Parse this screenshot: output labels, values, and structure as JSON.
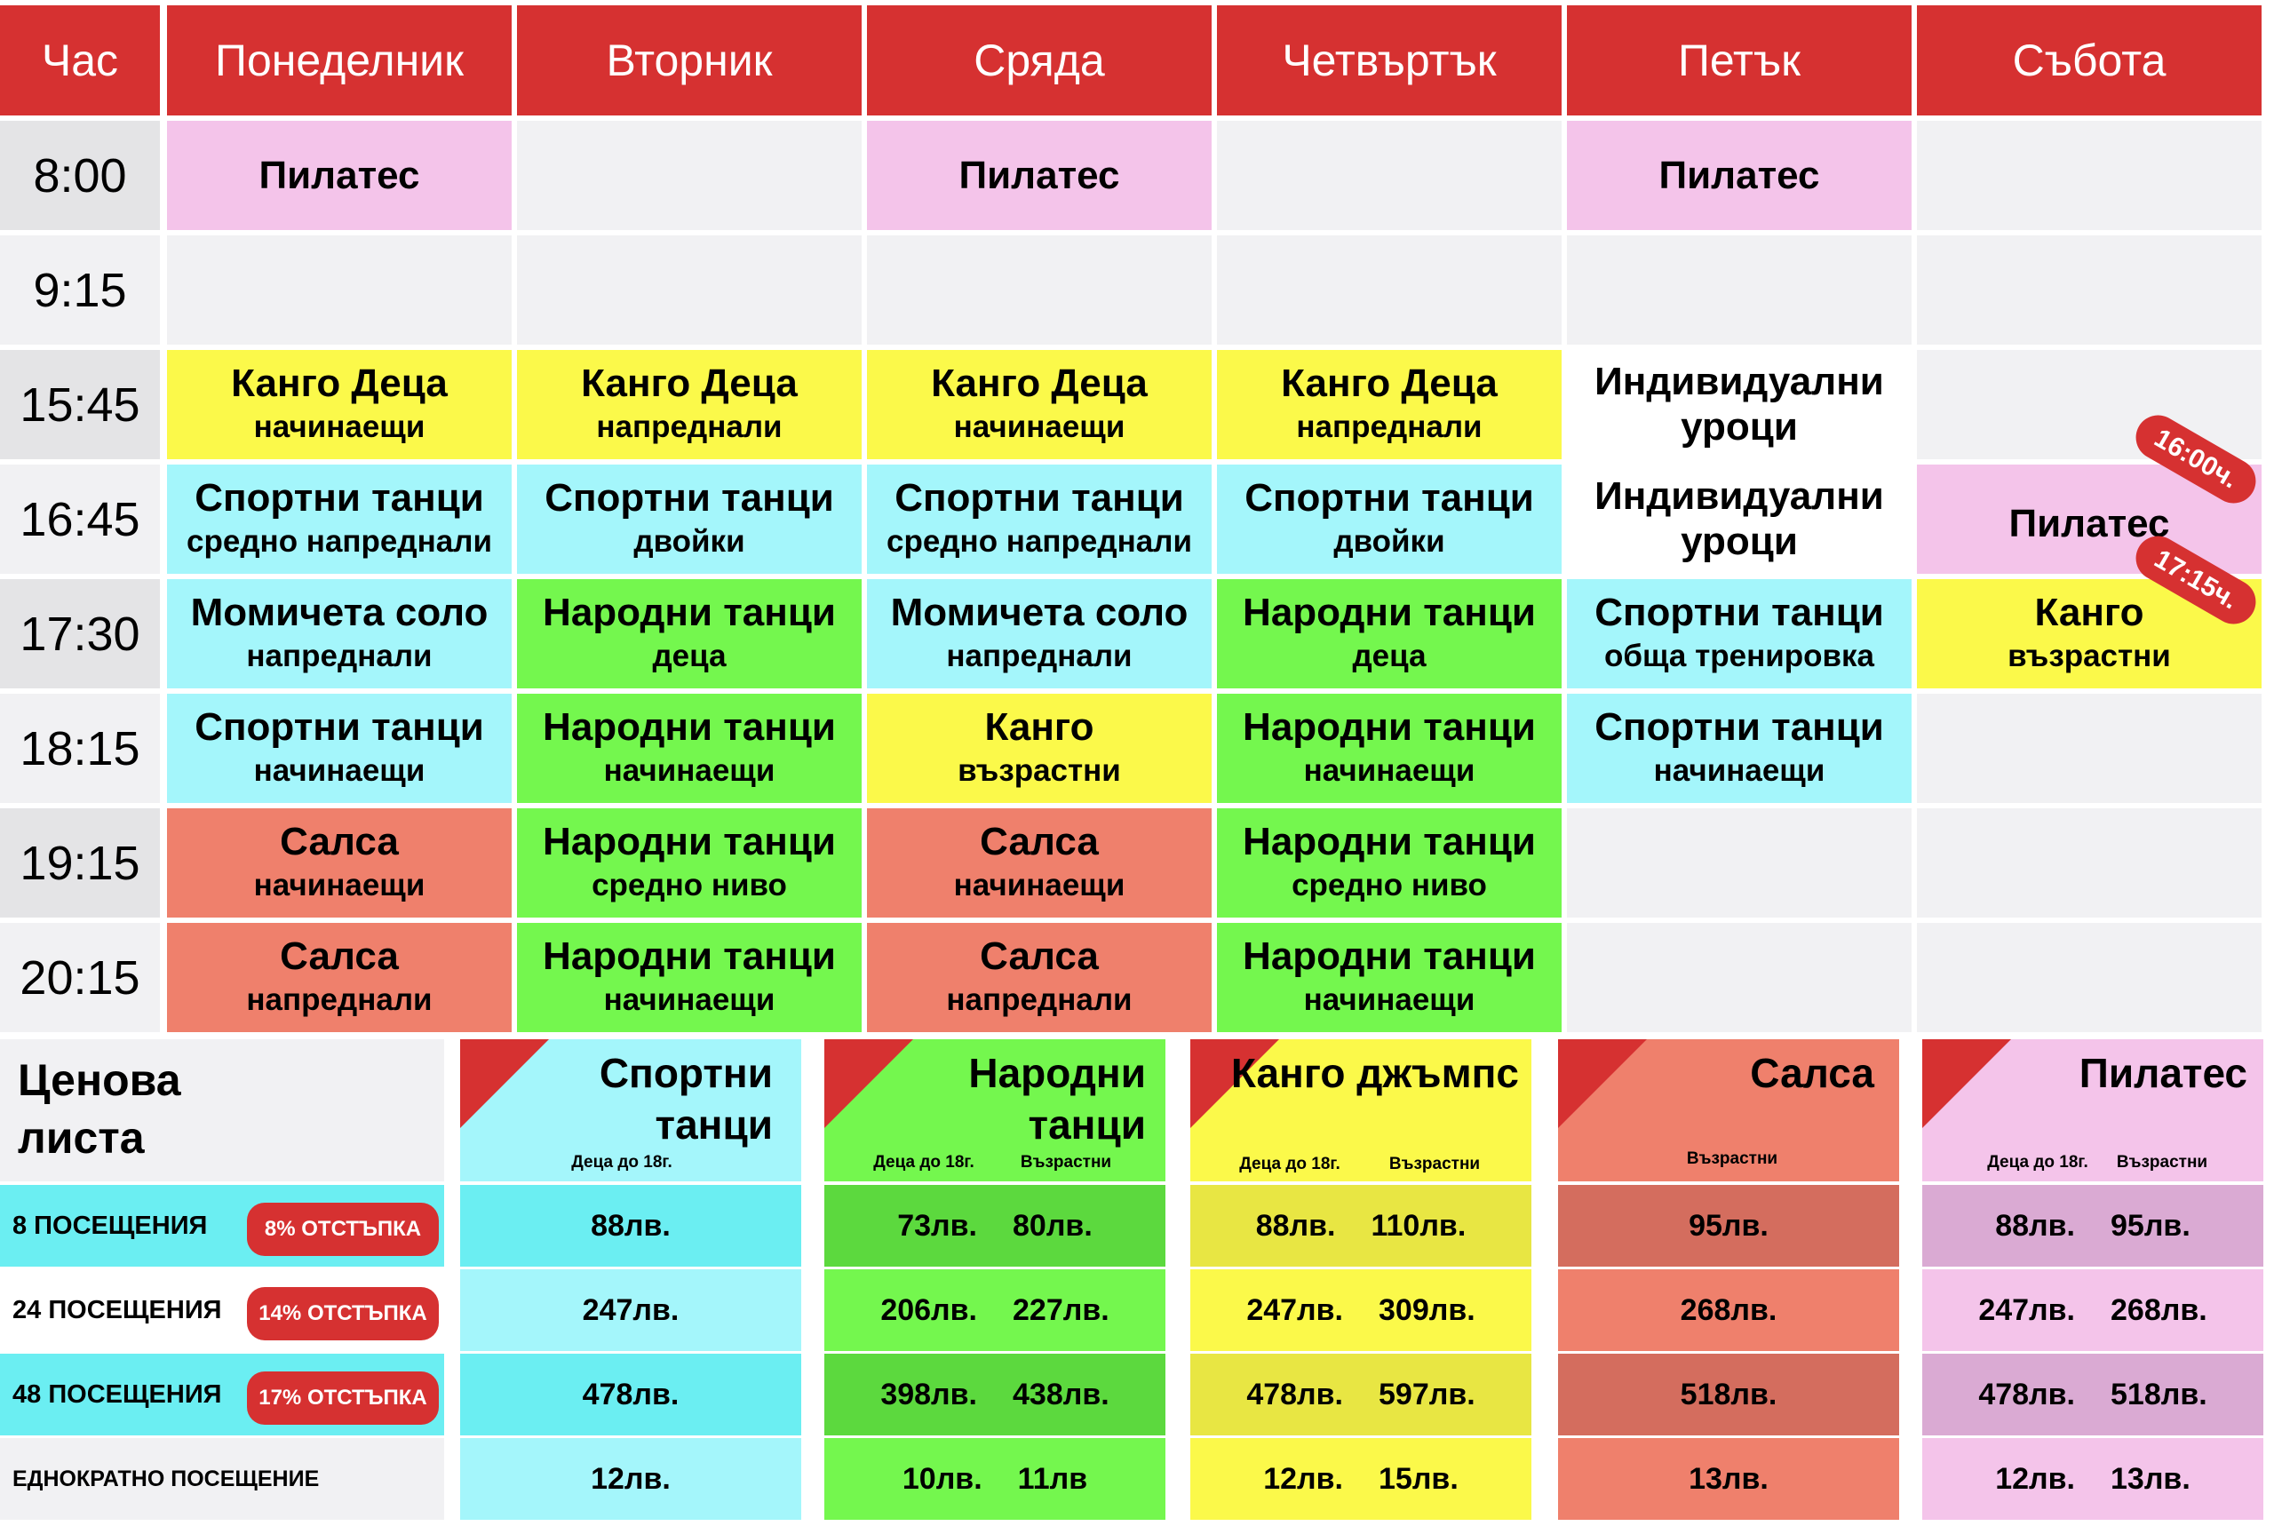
{
  "header": {
    "time": "Час",
    "days": [
      "Понеделник",
      "Вторник",
      "Сряда",
      "Четвъртък",
      "Петък",
      "Събота"
    ]
  },
  "times": [
    "8:00",
    "9:15",
    "15:45",
    "16:45",
    "17:30",
    "18:15",
    "19:15",
    "20:15"
  ],
  "classes": {
    "r0": {
      "mon": "Пилатес",
      "wed": "Пилатес",
      "fri": "Пилатес"
    },
    "r2": {
      "mon": {
        "title": "Канго Деца",
        "sub": "начинаещи"
      },
      "tue": {
        "title": "Канго Деца",
        "sub": "напреднали"
      },
      "wed": {
        "title": "Канго Деца",
        "sub": "начинаещи"
      },
      "thu": {
        "title": "Канго Деца",
        "sub": "напреднали"
      },
      "fri": "Индивидуални уроци"
    },
    "r3": {
      "mon": {
        "title": "Спортни танци",
        "sub": "средно напреднали"
      },
      "tue": {
        "title": "Спортни танци",
        "sub": "двойки"
      },
      "wed": {
        "title": "Спортни танци",
        "sub": "средно напреднали"
      },
      "thu": {
        "title": "Спортни танци",
        "sub": "двойки"
      },
      "fri": "Индивидуални уроци",
      "sat": "Пилатес",
      "sat_tag": "16:00ч."
    },
    "r4": {
      "mon": {
        "title": "Момичета соло",
        "sub": "напреднали"
      },
      "tue": {
        "title": "Народни танци",
        "sub": "деца"
      },
      "wed": {
        "title": "Момичета соло",
        "sub": "напреднали"
      },
      "thu": {
        "title": "Народни танци",
        "sub": "деца"
      },
      "fri": {
        "title": "Спортни танци",
        "sub": "обща тренировка"
      },
      "sat": {
        "title": "Канго",
        "sub": "възрастни"
      },
      "sat_tag": "17:15ч."
    },
    "r5": {
      "mon": {
        "title": "Спортни танци",
        "sub": "начинаещи"
      },
      "tue": {
        "title": "Народни танци",
        "sub": "начинаещи"
      },
      "wed": {
        "title": "Канго",
        "sub": "възрастни"
      },
      "thu": {
        "title": "Народни танци",
        "sub": "начинаещи"
      },
      "fri": {
        "title": "Спортни танци",
        "sub": "начинаещи"
      }
    },
    "r6": {
      "mon": {
        "title": "Салса",
        "sub": "начинаещи"
      },
      "tue": {
        "title": "Народни танци",
        "sub": "средно ниво"
      },
      "wed": {
        "title": "Салса",
        "sub": "начинаещи"
      },
      "thu": {
        "title": "Народни танци",
        "sub": "средно ниво"
      }
    },
    "r7": {
      "mon": {
        "title": "Салса",
        "sub": "напреднали"
      },
      "tue": {
        "title": "Народни танци",
        "sub": "начинаещи"
      },
      "wed": {
        "title": "Салса",
        "sub": "напреднали"
      },
      "thu": {
        "title": "Народни танци",
        "sub": "начинаещи"
      }
    }
  },
  "pricing": {
    "title": "Ценова листа",
    "rows": [
      {
        "label": "8 ПОСЕЩЕНИЯ",
        "discount": "8% ОТСТЪПКА"
      },
      {
        "label": "24 ПОСЕЩЕНИЯ",
        "discount": "14% ОТСТЪПКА"
      },
      {
        "label": "48 ПОСЕЩЕНИЯ",
        "discount": "17% ОТСТЪПКА"
      },
      {
        "label": "ЕДНОКРАТНО ПОСЕЩЕНИЕ",
        "discount": ""
      }
    ],
    "kids_label": "Деца до 18г.",
    "adults_label": "Възрастни",
    "columns": [
      {
        "title": "Спортни танци",
        "prices": [
          [
            "88лв."
          ],
          [
            "247лв."
          ],
          [
            "478лв."
          ],
          [
            "12лв."
          ]
        ]
      },
      {
        "title": "Народни танци",
        "prices": [
          [
            "73лв.",
            "80лв."
          ],
          [
            "206лв.",
            "227лв."
          ],
          [
            "398лв.",
            "438лв."
          ],
          [
            "10лв.",
            "11лв"
          ]
        ]
      },
      {
        "title": "Канго джъмпс",
        "prices": [
          [
            "88лв.",
            "110лв."
          ],
          [
            "247лв.",
            "309лв."
          ],
          [
            "478лв.",
            "597лв."
          ],
          [
            "12лв.",
            "15лв."
          ]
        ]
      },
      {
        "title": "Салса",
        "prices": [
          [
            "95лв."
          ],
          [
            "268лв."
          ],
          [
            "518лв."
          ],
          [
            "13лв."
          ]
        ]
      },
      {
        "title": "Пилатес",
        "prices": [
          [
            "88лв.",
            "95лв."
          ],
          [
            "247лв.",
            "268лв."
          ],
          [
            "478лв.",
            "518лв."
          ],
          [
            "12лв.",
            "13лв."
          ]
        ]
      }
    ]
  },
  "colors": {
    "header_red": "#d63131",
    "pilates_pink": "#f4c4ea",
    "kango_yellow": "#fbf94a",
    "sport_cyan": "#a4f6fb",
    "folk_green": "#74f74e",
    "salsa_salmon": "#ef806c"
  }
}
